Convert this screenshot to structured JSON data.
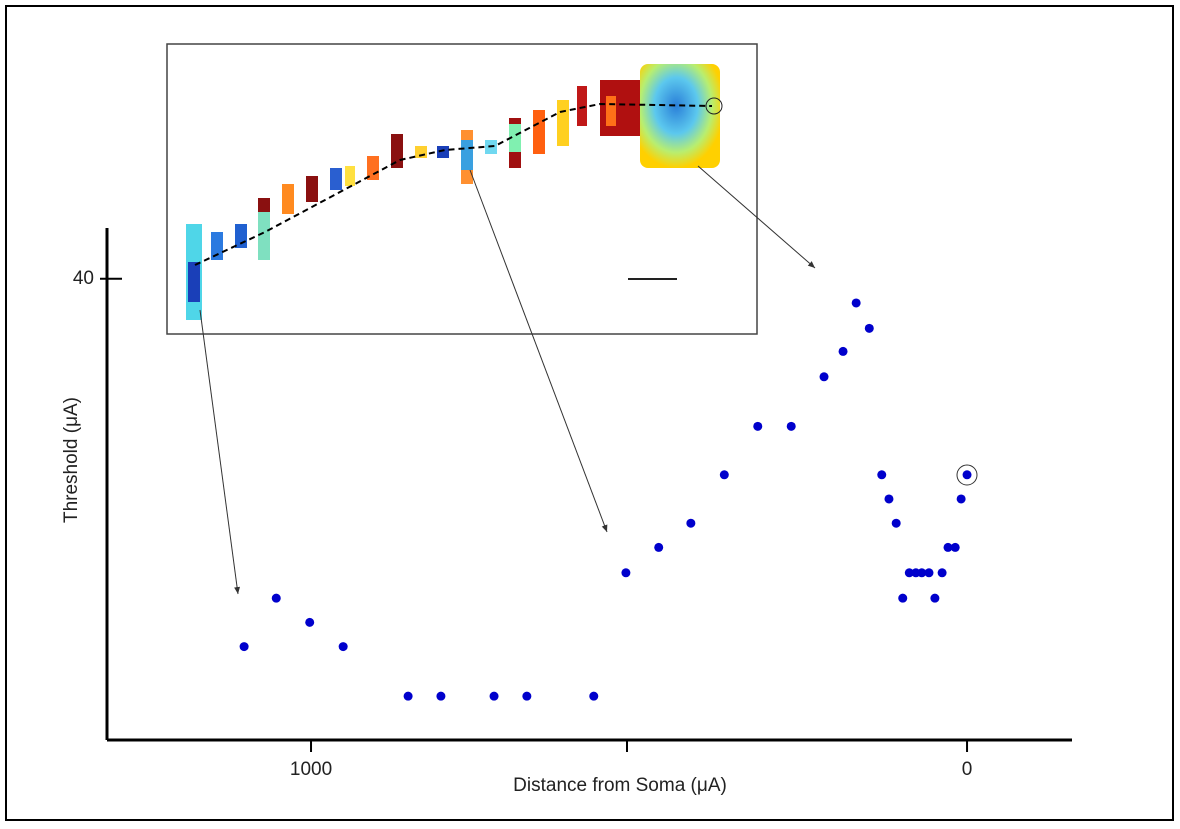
{
  "chart_data": {
    "type": "scatter",
    "xlabel": "Distance from Soma (μA)",
    "ylabel": "Threshold (μA)",
    "x": [
      1102,
      1053,
      1002,
      951,
      852,
      802,
      721,
      671,
      569,
      520,
      470,
      421,
      370,
      319,
      268,
      218,
      189,
      169,
      149,
      130,
      119,
      108,
      98,
      88,
      78,
      69,
      58,
      49,
      38,
      29,
      18,
      9,
      0
    ],
    "values": [
      8.1,
      12.3,
      10.2,
      8.1,
      3.8,
      3.8,
      3.8,
      3.8,
      3.8,
      14.5,
      16.7,
      18.8,
      23.0,
      27.2,
      27.2,
      31.5,
      33.7,
      37.9,
      35.7,
      23.0,
      20.9,
      18.8,
      12.3,
      14.5,
      14.5,
      14.5,
      14.5,
      12.3,
      14.5,
      16.7,
      16.7,
      20.9,
      23.0
    ],
    "color": "#0000cc",
    "xlim": [
      1311,
      -160
    ],
    "xticks": [
      1000,
      0
    ],
    "ylim": [
      0,
      44.4
    ],
    "yticks": [
      40
    ]
  }
}
